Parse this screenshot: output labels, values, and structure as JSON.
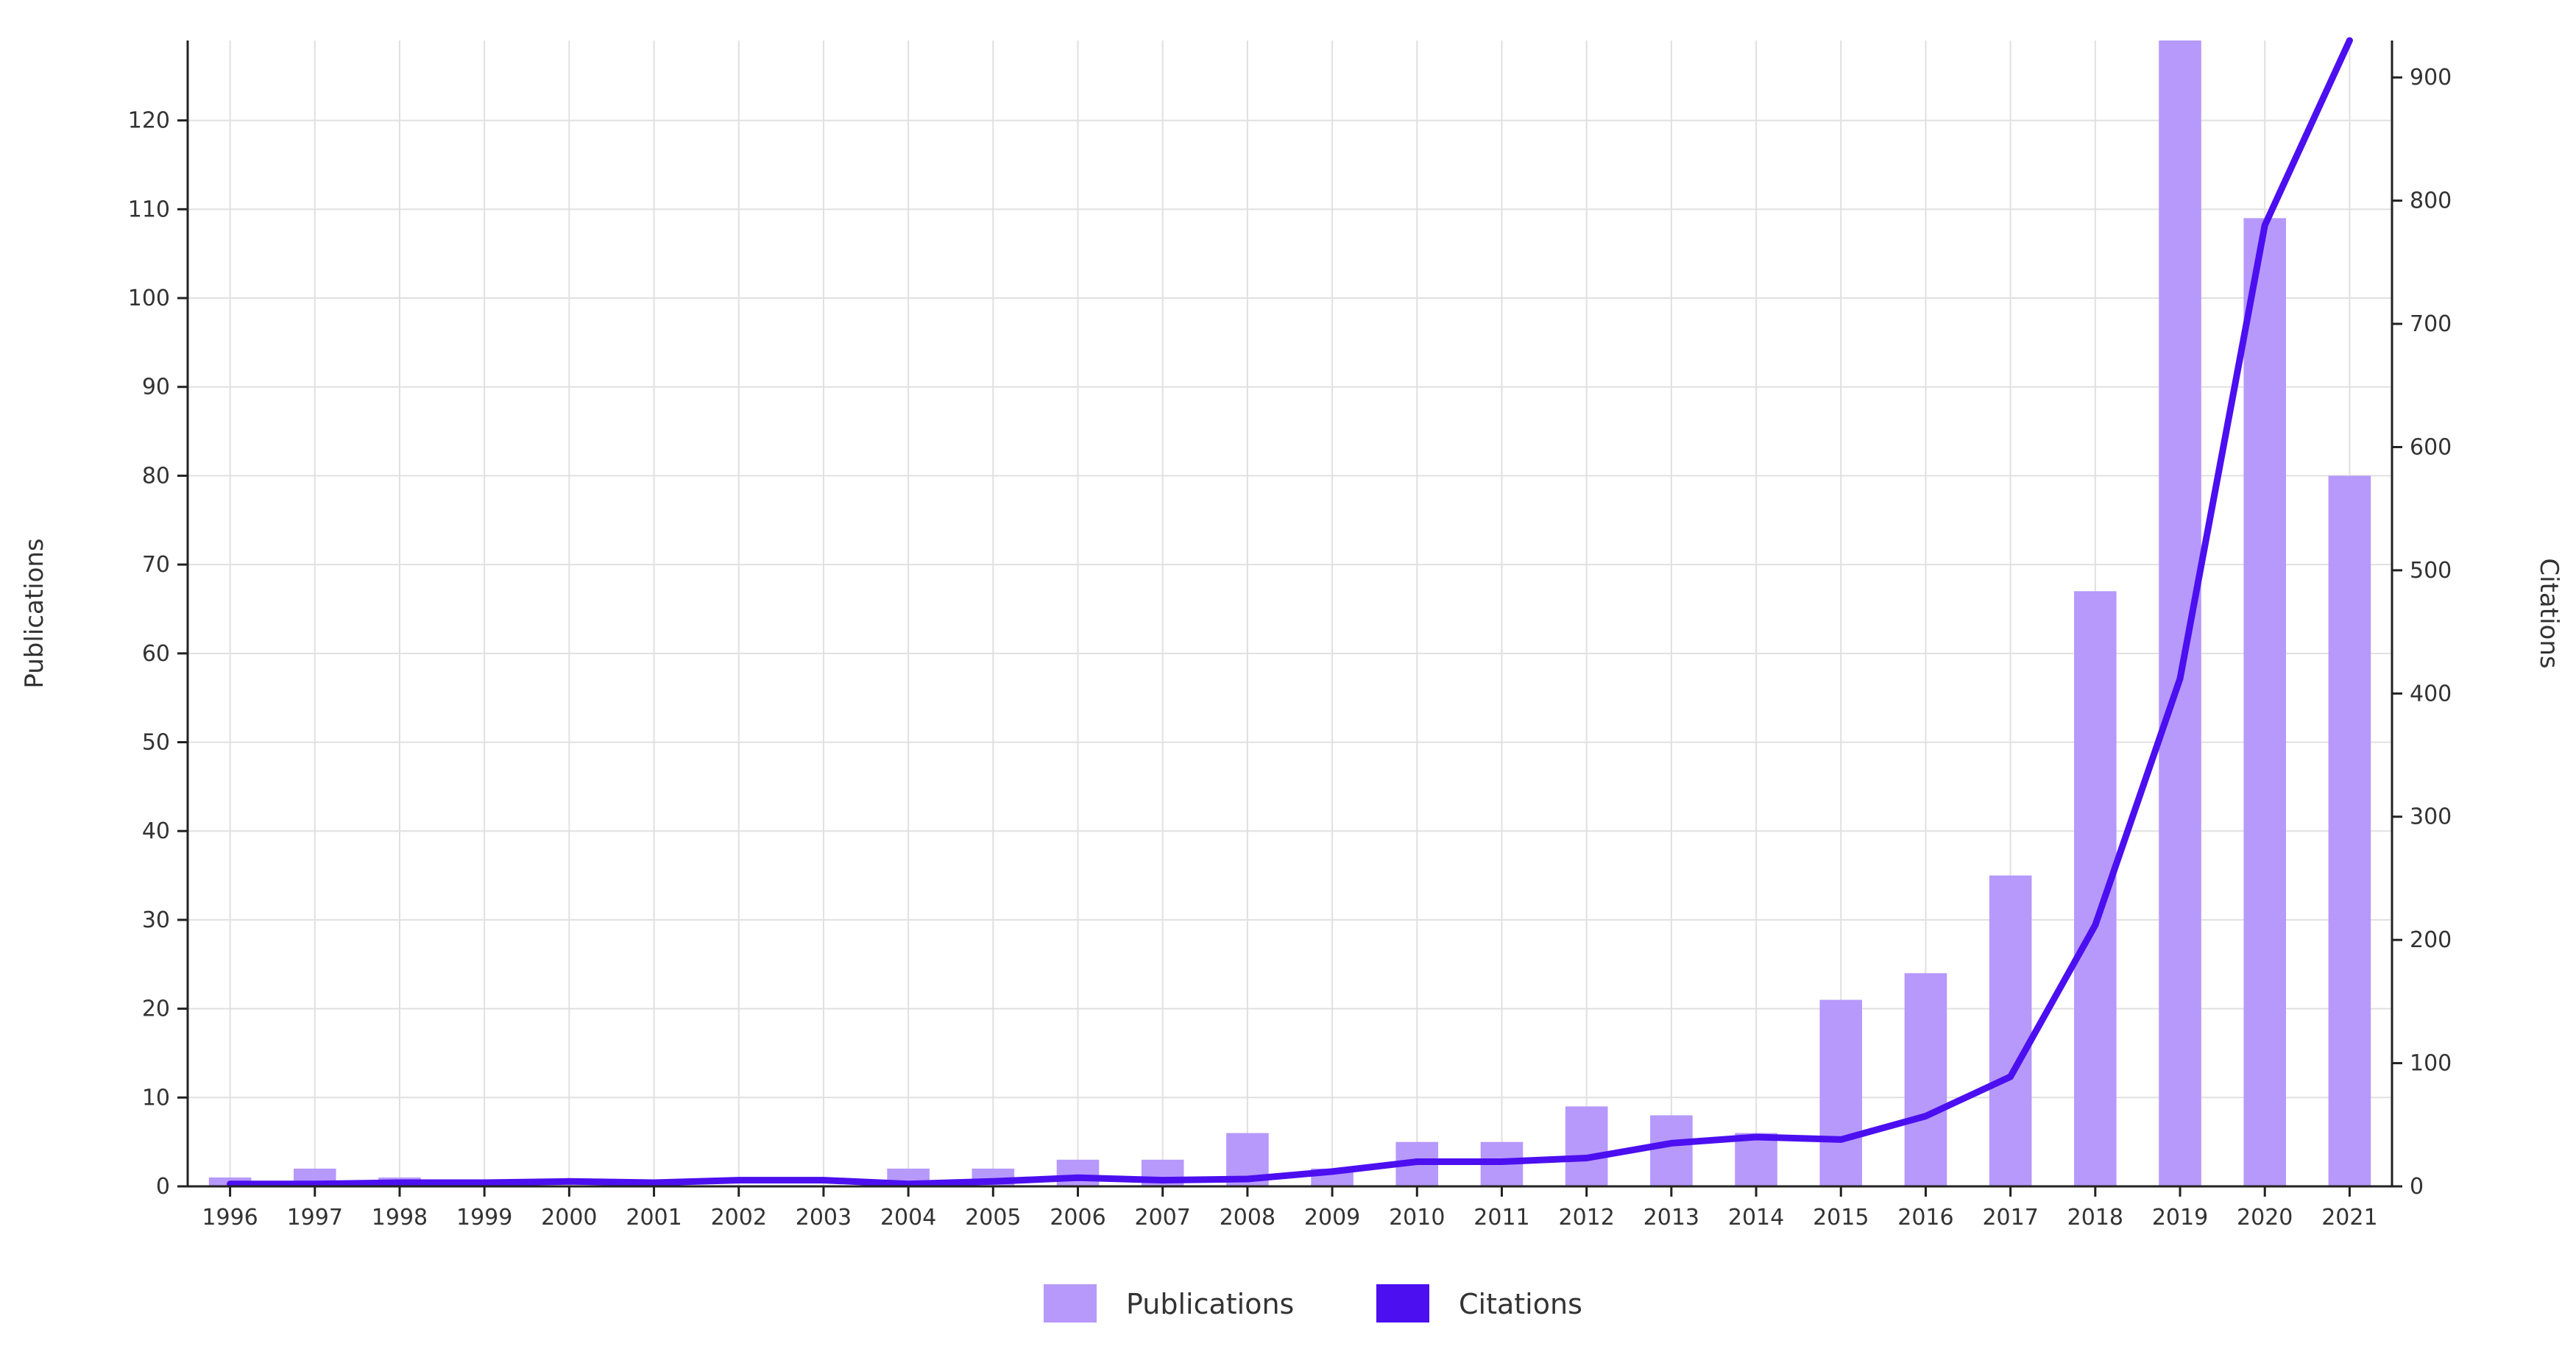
{
  "chart_data": {
    "type": "bar+line",
    "categories": [
      "1996",
      "1997",
      "1998",
      "1999",
      "2000",
      "2001",
      "2002",
      "2003",
      "2004",
      "2005",
      "2006",
      "2007",
      "2008",
      "2009",
      "2010",
      "2011",
      "2012",
      "2013",
      "2014",
      "2015",
      "2016",
      "2017",
      "2018",
      "2019",
      "2020",
      "2021"
    ],
    "series": [
      {
        "name": "Publications",
        "type": "bar",
        "axis": "left",
        "color": "#b699fb",
        "values": [
          1,
          2,
          1,
          0,
          0,
          0,
          0,
          0,
          2,
          2,
          3,
          3,
          6,
          2,
          5,
          5,
          9,
          8,
          6,
          21,
          24,
          35,
          67,
          129,
          109,
          80
        ]
      },
      {
        "name": "Citations",
        "type": "line",
        "axis": "right",
        "color": "#4c0ff0",
        "values": [
          2,
          2,
          3,
          3,
          4,
          3,
          5,
          5,
          2,
          4,
          7,
          5,
          6,
          12,
          20,
          20,
          23,
          35,
          40,
          38,
          57,
          89,
          212,
          412,
          780,
          930
        ]
      }
    ],
    "ylabel_left": "Publications",
    "ylabel_right": "Citations",
    "ylim_left": [
      0,
      129
    ],
    "ylim_right": [
      0,
      930
    ],
    "yticks_left": [
      0,
      10,
      20,
      30,
      40,
      50,
      60,
      70,
      80,
      90,
      100,
      110,
      120
    ],
    "yticks_right": [
      0,
      100,
      200,
      300,
      400,
      500,
      600,
      700,
      800,
      900
    ],
    "grid": true,
    "legend": "bottom-center"
  }
}
